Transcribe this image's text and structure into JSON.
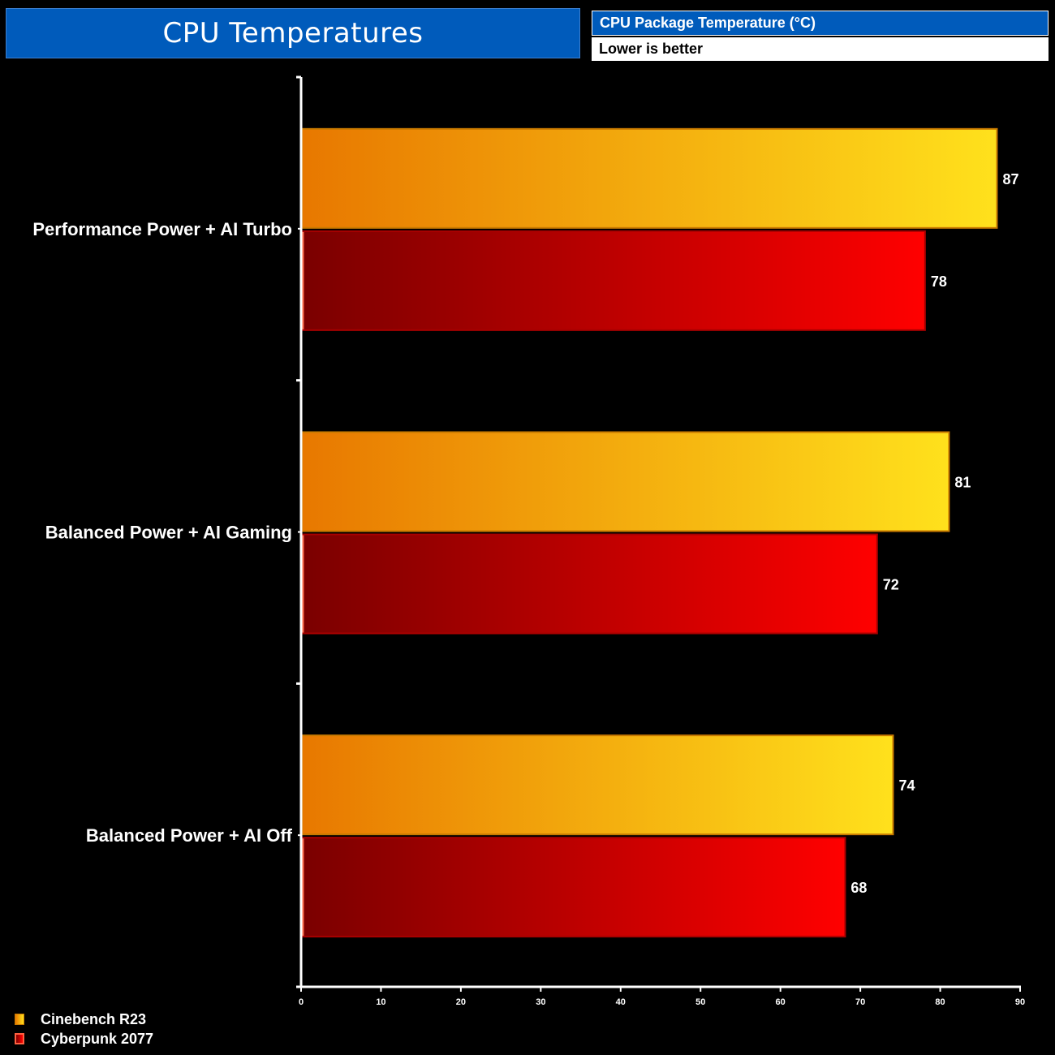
{
  "header": {
    "title": "CPU Temperatures",
    "metric": "CPU Package Temperature (°C)",
    "note": "Lower is better"
  },
  "chart_data": {
    "type": "bar",
    "orientation": "horizontal",
    "categories": [
      "Performance Power + AI Turbo",
      "Balanced Power + AI Gaming",
      "Balanced Power + AI Off"
    ],
    "series": [
      {
        "name": "Cinebench R23",
        "values": [
          87,
          81,
          74
        ],
        "color_start": "#e87800",
        "color_end": "#ffe11c"
      },
      {
        "name": "Cyberpunk 2077",
        "values": [
          78,
          72,
          68
        ],
        "color_start": "#7a0000",
        "color_end": "#ff0000"
      }
    ],
    "xlim": [
      0,
      90
    ],
    "xticks": [
      0,
      10,
      20,
      30,
      40,
      50,
      60,
      70,
      80,
      90
    ],
    "grid": false,
    "legend_position": "bottom-left"
  }
}
